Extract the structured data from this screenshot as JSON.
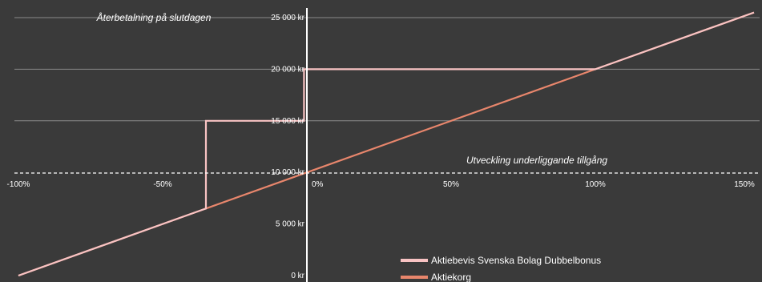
{
  "chart_data": {
    "type": "line",
    "title": "Återbetalning på slutdagen",
    "xlabel": "Utveckling underliggande tillgång",
    "ylabel": "",
    "x_ticks": [
      "-100%",
      "-50%",
      "0%",
      "50%",
      "100%",
      "150%"
    ],
    "y_ticks": [
      "0 kr",
      "5 000 kr",
      "10 000 kr",
      "15 000 kr",
      "20 000 kr",
      "25 000 kr"
    ],
    "xlim": [
      -100,
      155
    ],
    "ylim": [
      0,
      25000
    ],
    "grid": true,
    "legend_position": "bottom",
    "series": [
      {
        "name": "Aktiebevis Svenska Bolag Dubbelbonus",
        "color": "#f8c3c3",
        "points": [
          [
            -100,
            0
          ],
          [
            -35,
            6500
          ],
          [
            -35,
            15000
          ],
          [
            -1,
            15000
          ],
          [
            -1,
            20000
          ],
          [
            100,
            20000
          ],
          [
            155,
            25500
          ]
        ]
      },
      {
        "name": "Aktiekorg",
        "color": "#e8866c",
        "points": [
          [
            -100,
            0
          ],
          [
            -35,
            6500
          ],
          [
            100,
            20000
          ],
          [
            155,
            25500
          ]
        ]
      }
    ]
  }
}
